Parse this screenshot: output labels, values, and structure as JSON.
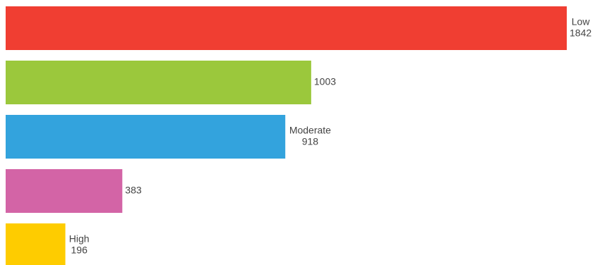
{
  "chart_data": {
    "type": "bar",
    "orientation": "horizontal",
    "xlim": [
      0,
      1842
    ],
    "grid": false,
    "legend": "none",
    "bars": [
      {
        "label": "Low",
        "value": 1842,
        "color": "#f03e32"
      },
      {
        "label": "",
        "value": 1003,
        "color": "#9bc83c"
      },
      {
        "label": "Moderate",
        "value": 918,
        "color": "#33a3dd"
      },
      {
        "label": "",
        "value": 383,
        "color": "#d364a6"
      },
      {
        "label": "High",
        "value": 196,
        "color": "#fecc00"
      }
    ]
  }
}
